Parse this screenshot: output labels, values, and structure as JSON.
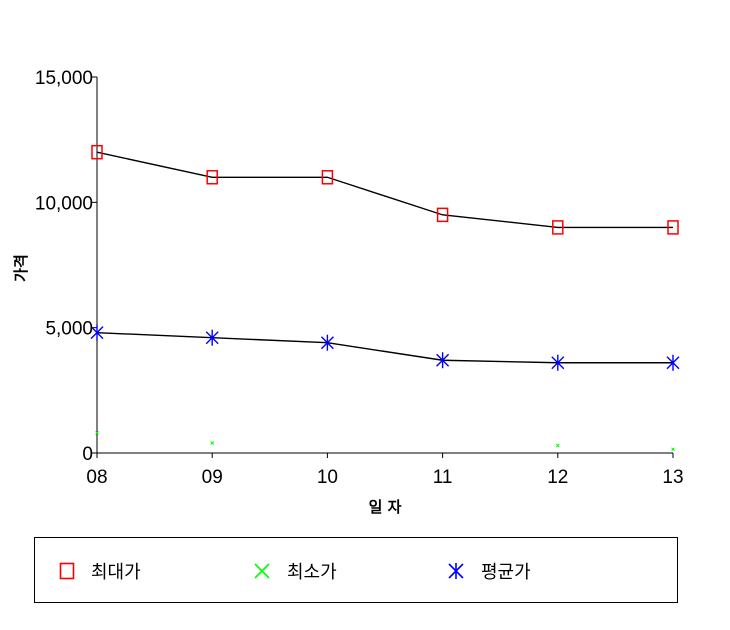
{
  "chart_data": {
    "type": "line",
    "title": "",
    "xlabel": "일 자",
    "ylabel": "가격",
    "categories": [
      "08",
      "09",
      "10",
      "11",
      "12",
      "13"
    ],
    "ylim": [
      0,
      15000
    ],
    "yticks": [
      0,
      5000,
      10000,
      15000
    ],
    "ytick_labels": [
      "0",
      "5,000",
      "10,000",
      "15,000"
    ],
    "grid": false,
    "legend_position": "bottom",
    "series": [
      {
        "name": "최대가",
        "values": [
          12000,
          11000,
          11000,
          9500,
          9000,
          9000
        ],
        "color": "#ff0000",
        "marker": "square",
        "line_color": "#000000"
      },
      {
        "name": "최소가",
        "values": [
          800,
          400,
          null,
          null,
          300,
          150
        ],
        "color": "#00ff00",
        "marker": "x",
        "line_color": "#00ff00"
      },
      {
        "name": "평균가",
        "values": [
          4800,
          4600,
          4400,
          3700,
          3600,
          3600
        ],
        "color": "#0000ff",
        "marker": "asterisk",
        "line_color": "#000000"
      }
    ]
  }
}
